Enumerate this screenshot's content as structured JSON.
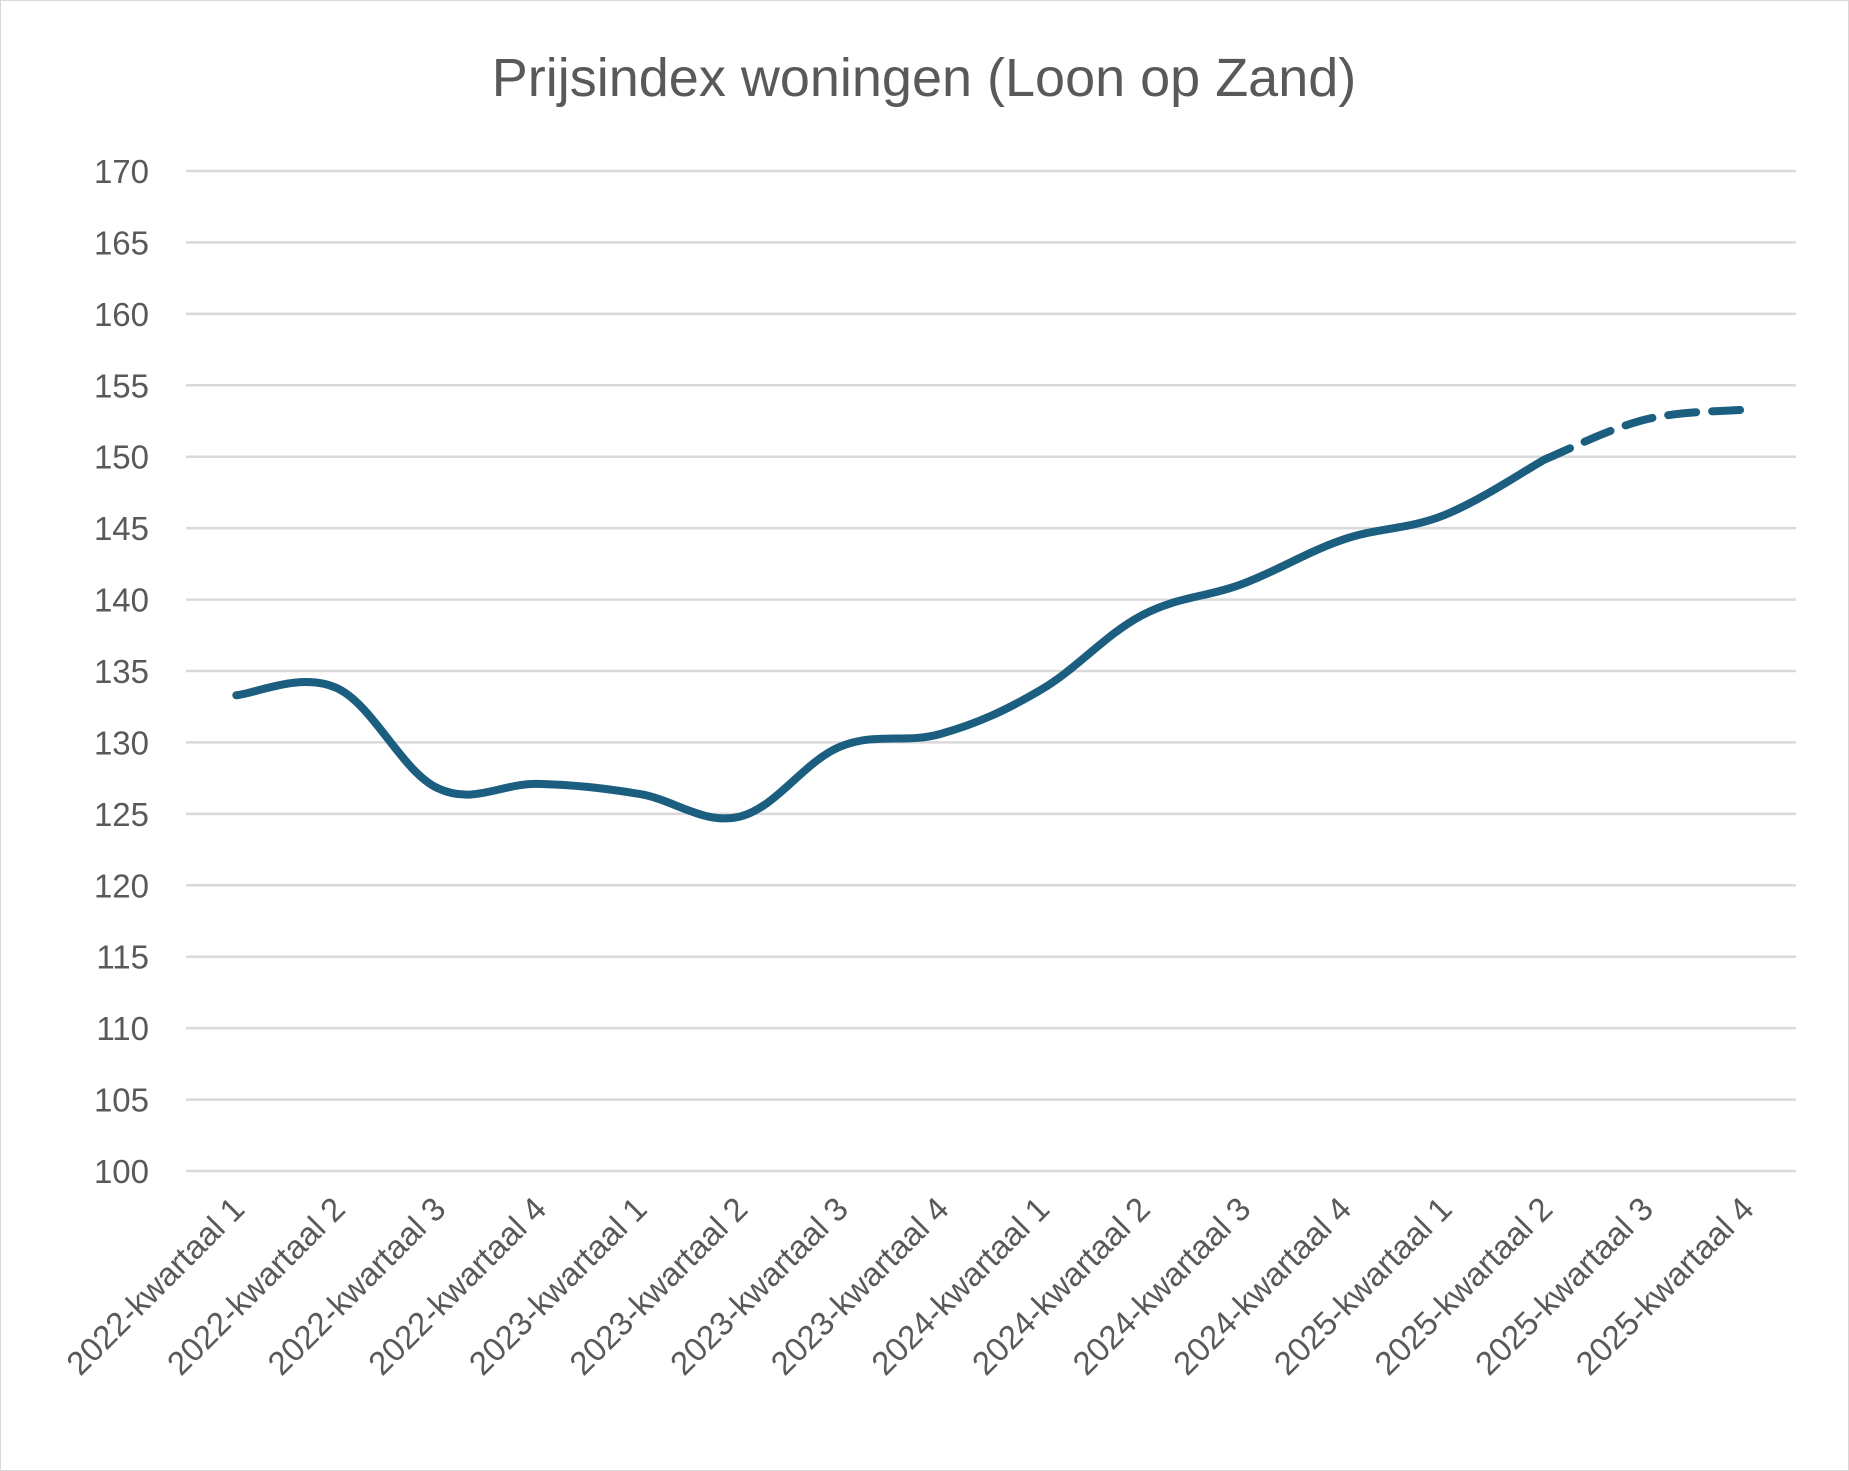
{
  "chart_data": {
    "type": "line",
    "title": "Prijsindex woningen (Loon op Zand)",
    "xlabel": "",
    "ylabel": "",
    "ylim": [
      100,
      170
    ],
    "ytick_step": 5,
    "yticks": [
      "100",
      "105",
      "110",
      "115",
      "120",
      "125",
      "130",
      "135",
      "140",
      "145",
      "150",
      "155",
      "160",
      "165",
      "170"
    ],
    "grid": true,
    "legend": "none",
    "categories": [
      "2022-kwartaal 1",
      "2022-kwartaal 2",
      "2022-kwartaal 3",
      "2022-kwartaal 4",
      "2023-kwartaal 1",
      "2023-kwartaal 2",
      "2023-kwartaal 3",
      "2023-kwartaal 4",
      "2024-kwartaal 1",
      "2024-kwartaal 2",
      "2024-kwartaal 3",
      "2024-kwartaal 4",
      "2025-kwartaal 1",
      "2025-kwartaal 2",
      "2025-kwartaal 3",
      "2025-kwartaal 4"
    ],
    "series": [
      {
        "values": [
          133.3,
          133.8,
          126.8,
          127.1,
          126.4,
          124.8,
          129.7,
          130.6,
          133.7,
          138.9,
          141.1,
          144.2,
          145.9,
          149.8,
          152.6,
          153.3
        ],
        "color": "#1b5e80",
        "solid_until_index": 13,
        "dashed_from_index": 13
      }
    ]
  }
}
